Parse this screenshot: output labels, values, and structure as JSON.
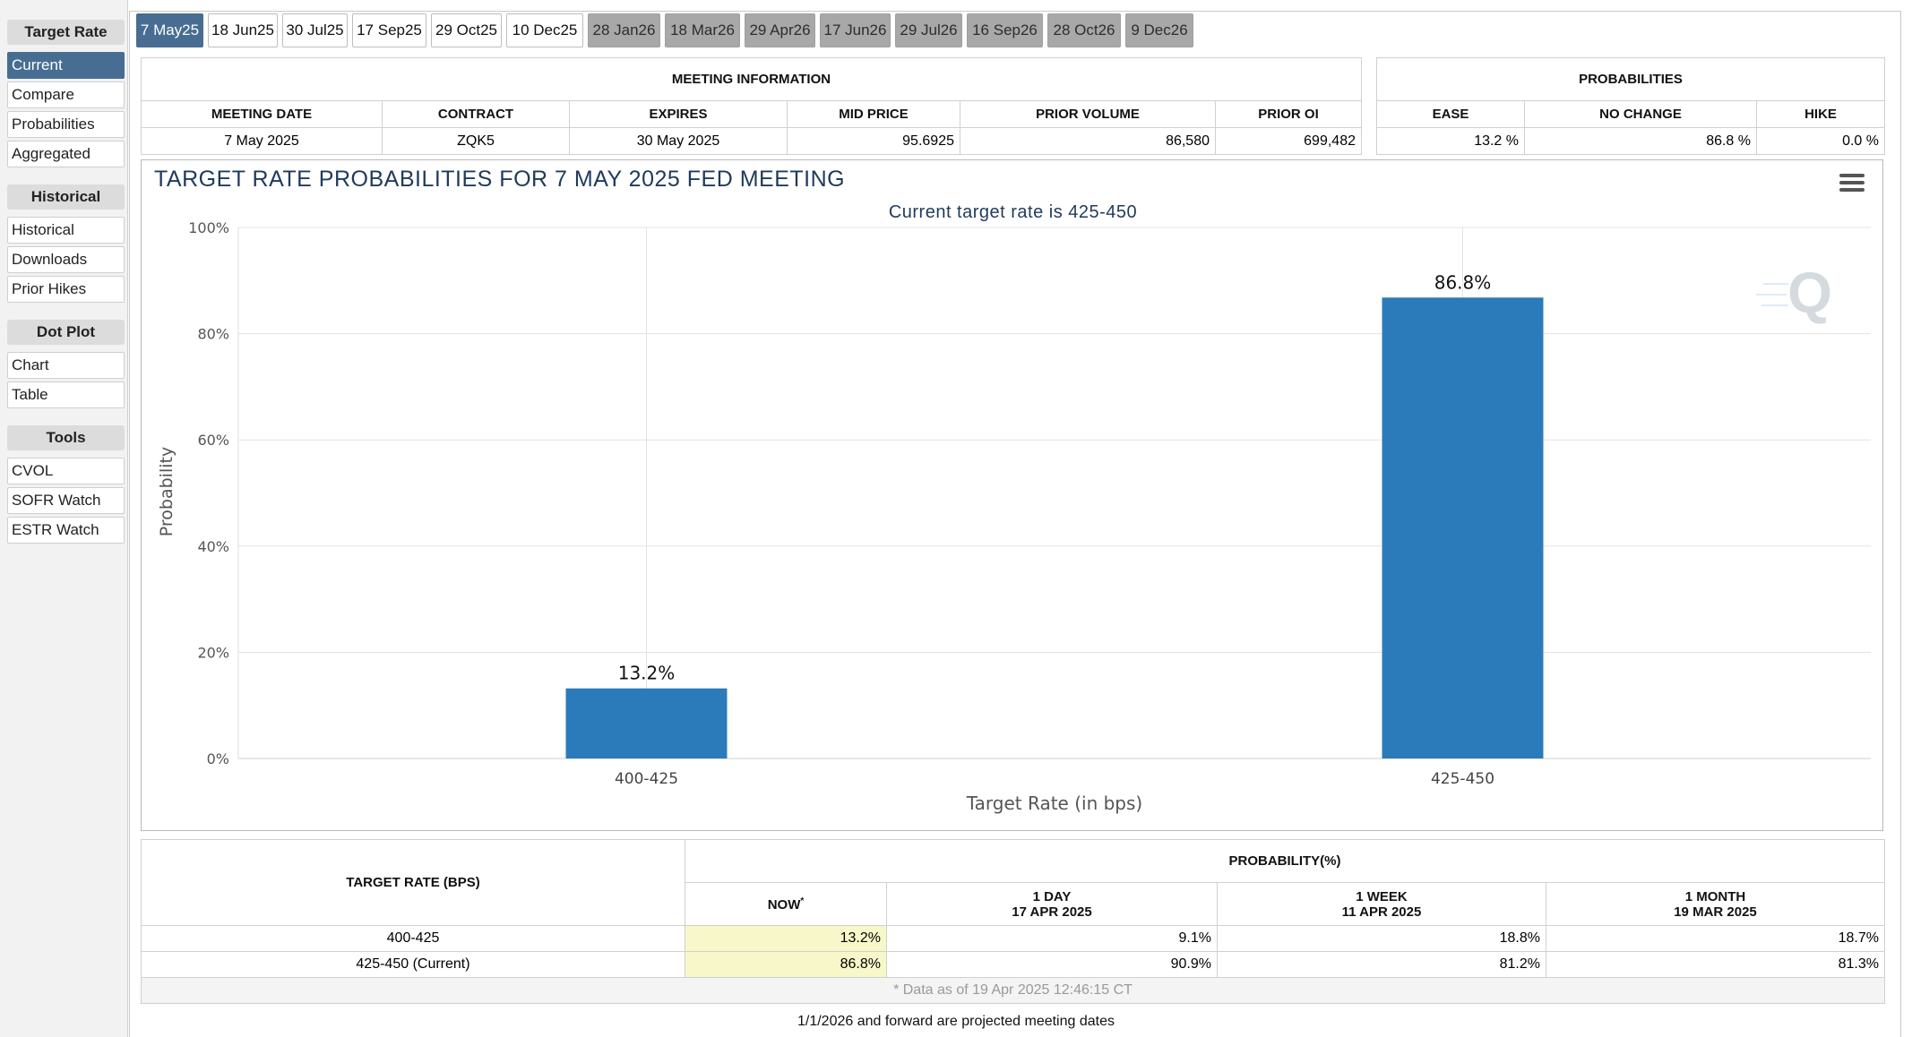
{
  "sidebar": {
    "sections": [
      {
        "header": "Target Rate",
        "items": [
          "Current",
          "Compare",
          "Probabilities",
          "Aggregated"
        ]
      },
      {
        "header": "Historical",
        "items": [
          "Historical",
          "Downloads",
          "Prior Hikes"
        ]
      },
      {
        "header": "Dot Plot",
        "items": [
          "Chart",
          "Table"
        ]
      },
      {
        "header": "Tools",
        "items": [
          "CVOL",
          "SOFR Watch",
          "ESTR Watch"
        ]
      }
    ],
    "active_item": "Current"
  },
  "tabs": [
    "7 May25",
    "18 Jun25",
    "30 Jul25",
    "17 Sep25",
    "29 Oct25",
    "10 Dec25",
    "28 Jan26",
    "18 Mar26",
    "29 Apr26",
    "17 Jun26",
    "29 Jul26",
    "16 Sep26",
    "28 Oct26",
    "9 Dec26"
  ],
  "meeting_info": {
    "title": "MEETING INFORMATION",
    "headers": [
      "MEETING DATE",
      "CONTRACT",
      "EXPIRES",
      "MID PRICE",
      "PRIOR VOLUME",
      "PRIOR OI"
    ],
    "values": [
      "7 May 2025",
      "ZQK5",
      "30 May 2025",
      "95.6925",
      "86,580",
      "699,482"
    ]
  },
  "probabilities": {
    "title": "PROBABILITIES",
    "headers": [
      "EASE",
      "NO CHANGE",
      "HIKE"
    ],
    "values": [
      "13.2 %",
      "86.8 %",
      "0.0 %"
    ]
  },
  "chart_data": {
    "type": "bar",
    "title": "TARGET RATE PROBABILITIES FOR 7 MAY 2025 FED MEETING",
    "subtitle": "Current target rate is 425-450",
    "categories": [
      "400-425",
      "425-450"
    ],
    "values": [
      13.2,
      86.8
    ],
    "data_labels": [
      "13.2%",
      "86.8%"
    ],
    "xlabel": "Target Rate (in bps)",
    "ylabel": "Probability",
    "ylim": [
      0,
      100
    ],
    "yticks": [
      "0%",
      "20%",
      "40%",
      "60%",
      "80%",
      "100%"
    ],
    "bar_color": "#2b7bba",
    "grid": true,
    "legend": "none"
  },
  "prob_table": {
    "rate_header": "TARGET RATE (BPS)",
    "prob_header": "PROBABILITY(%)",
    "cols": [
      {
        "line1": "NOW",
        "sup": "*",
        "line2": ""
      },
      {
        "line1": "1 DAY",
        "line2": "17 APR 2025"
      },
      {
        "line1": "1 WEEK",
        "line2": "11 APR 2025"
      },
      {
        "line1": "1 MONTH",
        "line2": "19 MAR 2025"
      }
    ],
    "rows": [
      {
        "rate": "400-425",
        "values": [
          "13.2%",
          "9.1%",
          "18.8%",
          "18.7%"
        ]
      },
      {
        "rate": "425-450 (Current)",
        "values": [
          "86.8%",
          "90.9%",
          "81.2%",
          "81.3%"
        ]
      }
    ],
    "footnote": "* Data as of 19 Apr 2025 12:46:15 CT",
    "now_highlight_color": "#f7f7c9"
  },
  "projection_note": "1/1/2026 and forward are projected meeting dates"
}
